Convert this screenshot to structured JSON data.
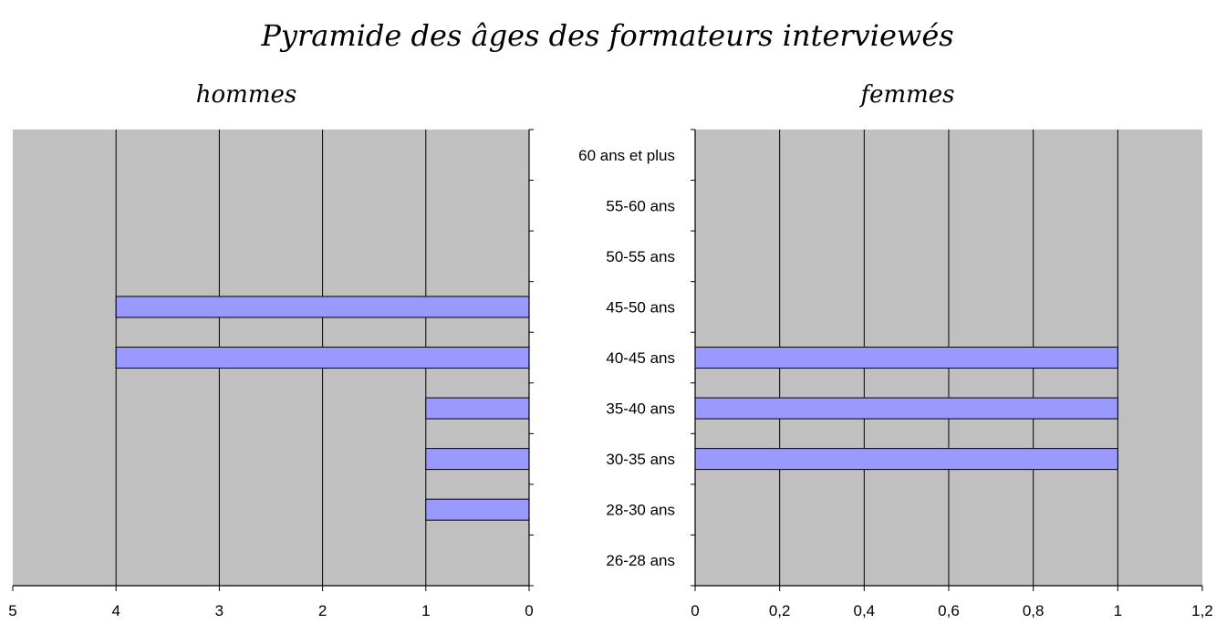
{
  "chart_data": {
    "type": "bar",
    "title": "Pyramide des âges des formateurs interviewés",
    "categories": [
      "60 ans et plus",
      "55-60 ans",
      "50-55 ans",
      "45-50 ans",
      "40-45 ans",
      "35-40 ans",
      "30-35 ans",
      "28-30 ans",
      "26-28 ans"
    ],
    "panels": [
      {
        "label": "hommes",
        "orientation": "horizontal",
        "x_reversed": true,
        "xlim": [
          0,
          5
        ],
        "x_ticks": [
          0,
          1,
          2,
          3,
          4,
          5
        ],
        "x_tick_labels": [
          "0",
          "1",
          "2",
          "3",
          "4",
          "5"
        ],
        "values": [
          0,
          0,
          0,
          4,
          4,
          1,
          1,
          1,
          0
        ]
      },
      {
        "label": "femmes",
        "orientation": "horizontal",
        "x_reversed": false,
        "xlim": [
          0,
          1.2
        ],
        "x_ticks": [
          0,
          0.2,
          0.4,
          0.6,
          0.8,
          1,
          1.2
        ],
        "x_tick_labels": [
          "0",
          "0,2",
          "0,4",
          "0,6",
          "0,8",
          "1",
          "1,2"
        ],
        "values": [
          0,
          0,
          0,
          0,
          1,
          1,
          1,
          0,
          0
        ]
      }
    ],
    "grid": true,
    "bar_color": "#9999ff",
    "plot_background": "#c0c0c0"
  }
}
